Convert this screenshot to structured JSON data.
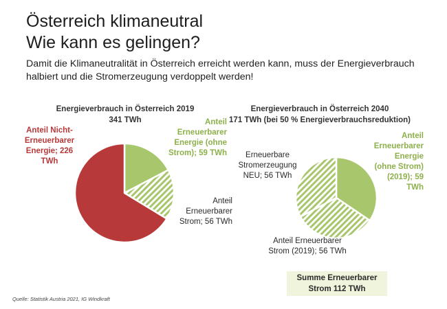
{
  "title_line1": "Österreich klimaneutral",
  "title_line2": "Wie kann es gelingen?",
  "subtitle": "Damit die Klimaneutralität in Österreich erreicht werden kann, muss der Energieverbrauch halbiert und die Stromerzeugung verdoppelt werden!",
  "colors": {
    "red": "#b7393a",
    "green": "#a8c66c",
    "hatch": "#a8c66c"
  },
  "chart_data": [
    {
      "type": "pie",
      "title": "Energieverbrauch in Österreich 2019",
      "subtitle": "341 TWh",
      "slices": [
        {
          "label": "Anteil Erneuerbarer Energie (ohne Strom); 59 TWh",
          "value": 59,
          "style": "solid-green"
        },
        {
          "label": "Anteil Erneuerbarer Strom; 56 TWh",
          "value": 56,
          "style": "hatch-green"
        },
        {
          "label": "Anteil Nicht-Erneuerbarer Energie; 226 TWh",
          "value": 226,
          "style": "solid-red"
        }
      ]
    },
    {
      "type": "pie",
      "title": "Energieverbrauch in Österreich 2040",
      "subtitle": "171 TWh (bei 50 % Energieverbrauchsreduktion)",
      "slices": [
        {
          "label": "Anteil Erneuerbarer Energie (ohne Strom) (2019); 59 TWh",
          "value": 59,
          "style": "solid-green"
        },
        {
          "label": "Anteil Erneuerbarer Strom (2019); 56 TWh",
          "value": 56,
          "style": "hatch-green"
        },
        {
          "label": "Erneuerbare Stromerzeugung NEU; 56 TWh",
          "value": 56,
          "style": "hatch-green"
        }
      ]
    }
  ],
  "labels": {
    "c1_red": [
      "Anteil Nicht-",
      "Erneuerbarer",
      "Energie; 226",
      "TWh"
    ],
    "c1_green": [
      "Anteil",
      "Erneuerbarer",
      "Energie (ohne",
      "Strom); 59 TWh"
    ],
    "c1_hatch": [
      "Anteil",
      "Erneuerbarer",
      "Strom; 56 TWh"
    ],
    "c2_new": [
      "Erneuerbare",
      "Stromerzeugung",
      "NEU; 56 TWh"
    ],
    "c2_green": [
      "Anteil",
      "Erneuerbarer",
      "Energie",
      "(ohne Strom)",
      "(2019); 59",
      "TWh"
    ],
    "c2_hatch": [
      "Anteil Erneuerbarer",
      "Strom (2019); 56 TWh"
    ]
  },
  "summary": [
    "Summe Erneuerbarer",
    "Strom 112 TWh"
  ],
  "source": "Quelle: Statistik Austria 2021, IG Windkraft"
}
